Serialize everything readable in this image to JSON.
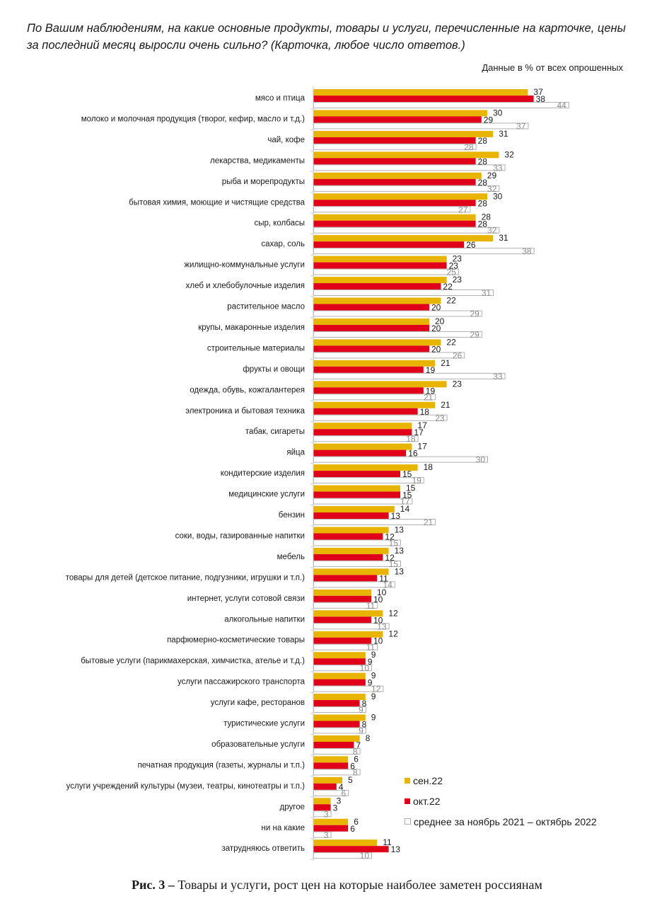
{
  "question": "По Вашим наблюдениям, на какие основные продукты, товары и услуги, перечисленные на карточке, цены за последний месяц выросли очень сильно? (Карточка, любое число ответов.)",
  "units_note": "Данные в % от всех опрошенных",
  "caption": {
    "prefix": "Рис. 3 –",
    "text": " Товары и услуги, рост цен на которые наиболее заметен россиянам"
  },
  "colors": {
    "sep": "#E8B400",
    "oct": "#E0001A",
    "avg_border": "#b0b0b0",
    "avg_fill": "#ffffff"
  },
  "chart_data": {
    "type": "bar",
    "orientation": "horizontal",
    "title": "По Вашим наблюдениям, на какие основные продукты, товары и услуги, перечисленные на карточке, цены за последний месяц выросли очень сильно?",
    "xlabel": "Данные в % от всех опрошенных",
    "ylabel": "",
    "xlim": [
      0,
      50
    ],
    "grid": false,
    "legend_position": "bottom-right",
    "categories": [
      "мясо и птица",
      "молоко и молочная продукция (творог, кефир, масло и т.д.)",
      "чай, кофе",
      "лекарства, медикаменты",
      "рыба и морепродукты",
      "бытовая химия, моющие и чистящие средства",
      "сыр, колбасы",
      "сахар, соль",
      "жилищно-коммунальные услуги",
      "хлеб и хлебобулочные изделия",
      "растительное масло",
      "крупы, макаронные изделия",
      "строительные материалы",
      "фрукты и овощи",
      "одежда, обувь, кожгалантерея",
      "электроника и бытовая техника",
      "табак, сигареты",
      "яйца",
      "кондитерские изделия",
      "медицинские услуги",
      "бензин",
      "соки, воды, газированные напитки",
      "мебель",
      "товары для детей (детское питание, подгузники, игрушки и т.п.)",
      "интернет, услуги сотовой связи",
      "алкогольные напитки",
      "парфюмерно-косметические товары",
      "бытовые услуги (парикмахерская, химчистка, ателье и т.д.)",
      "услуги пассажирского транспорта",
      "услуги кафе, ресторанов",
      "туристические услуги",
      "образовательные услуги",
      "печатная продукция (газеты, журналы и т.п.)",
      "услуги учреждений культуры (музеи, театры, кинотеатры и т.п.)",
      "другое",
      "ни на какие",
      "затрудняюсь ответить"
    ],
    "series": [
      {
        "name": "сен.22",
        "key": "sep",
        "values": [
          37,
          30,
          31,
          32,
          29,
          30,
          28,
          31,
          23,
          23,
          22,
          20,
          22,
          21,
          23,
          21,
          17,
          17,
          18,
          15,
          14,
          13,
          13,
          13,
          10,
          12,
          12,
          9,
          9,
          9,
          9,
          8,
          6,
          5,
          3,
          6,
          11
        ]
      },
      {
        "name": "окт.22",
        "key": "oct",
        "values": [
          38,
          29,
          28,
          28,
          28,
          28,
          28,
          26,
          23,
          22,
          20,
          20,
          20,
          19,
          19,
          18,
          17,
          16,
          15,
          15,
          13,
          12,
          12,
          11,
          10,
          10,
          10,
          9,
          9,
          8,
          8,
          7,
          6,
          4,
          3,
          6,
          13
        ]
      },
      {
        "name": "среднее за ноябрь 2021 – октябрь 2022",
        "key": "avg",
        "values": [
          44,
          37,
          28,
          33,
          32,
          27,
          32,
          38,
          25,
          31,
          29,
          29,
          26,
          33,
          21,
          23,
          18,
          30,
          19,
          17,
          21,
          15,
          15,
          14,
          11,
          13,
          11,
          10,
          12,
          9,
          9,
          8,
          8,
          6,
          3,
          3,
          10
        ]
      }
    ]
  }
}
